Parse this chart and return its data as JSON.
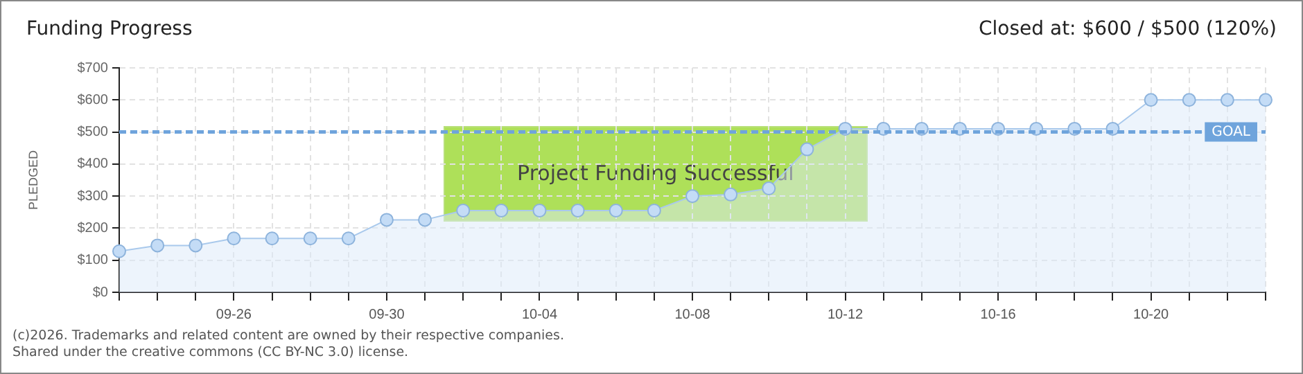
{
  "chart_data": {
    "type": "area",
    "title": "Funding Progress",
    "ylabel": "PLEDGED",
    "categories": [
      null,
      null,
      null,
      "09-26",
      null,
      null,
      null,
      "09-30",
      null,
      null,
      null,
      "10-04",
      null,
      null,
      null,
      "10-08",
      null,
      null,
      null,
      "10-12",
      null,
      null,
      null,
      "10-16",
      null,
      null,
      null,
      "10-20",
      null,
      null,
      null
    ],
    "series": [
      {
        "color": "#a9c9ec",
        "values": [
          128,
          146,
          146,
          168,
          168,
          168,
          168,
          226,
          226,
          255,
          255,
          255,
          255,
          255,
          255,
          300,
          305,
          324,
          446,
          510,
          510,
          510,
          510,
          510,
          510,
          510,
          510,
          600,
          600,
          600,
          600
        ]
      }
    ],
    "ylim": [
      0,
      700
    ],
    "yticks": [
      {
        "value": 0,
        "label": "$0"
      },
      {
        "value": 100,
        "label": "$100"
      },
      {
        "value": 200,
        "label": "$200"
      },
      {
        "value": 300,
        "label": "$300"
      },
      {
        "value": 400,
        "label": "$400"
      },
      {
        "value": 500,
        "label": "$500"
      },
      {
        "value": 600,
        "label": "$600"
      },
      {
        "value": 700,
        "label": "$700"
      }
    ],
    "grid": true,
    "marker": "circle",
    "legend": false,
    "ref_lines": [
      {
        "axis": "y",
        "value": 500,
        "label": "GOAL",
        "color": "#6fa4dc",
        "line_style": "dashed"
      }
    ],
    "annotations": [
      "Project Funding Successful",
      "Closed at: $600 / $500 (120%)",
      "(c)2026. Trademarks and related content are owned by their respective companies.",
      "Shared under the creative commons (CC BY-NC 3.0) license."
    ]
  }
}
